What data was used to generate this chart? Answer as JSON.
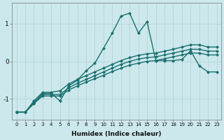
{
  "xlabel": "Humidex (Indice chaleur)",
  "ylabel": "",
  "xlim": [
    -0.5,
    23.5
  ],
  "ylim": [
    -1.55,
    1.55
  ],
  "xticks": [
    0,
    1,
    2,
    3,
    4,
    5,
    6,
    7,
    8,
    9,
    10,
    11,
    12,
    13,
    14,
    15,
    16,
    17,
    18,
    19,
    20,
    21,
    22,
    23
  ],
  "yticks": [
    -1,
    0,
    1
  ],
  "bg_color": "#cce8ec",
  "grid_color": "#b8d8dc",
  "line_color": "#1a7070",
  "line_width": 1.0,
  "marker": "D",
  "marker_size": 2.2,
  "series": [
    {
      "x": [
        0,
        1,
        2,
        3,
        4,
        5,
        6,
        7,
        8,
        9,
        10,
        11,
        12,
        13,
        14,
        15,
        16,
        17,
        18,
        19,
        20,
        21,
        22,
        23
      ],
      "y": [
        -1.35,
        -1.35,
        -1.1,
        -0.85,
        -0.85,
        -1.05,
        -0.65,
        -0.5,
        -0.25,
        -0.05,
        0.35,
        0.75,
        1.2,
        1.28,
        0.75,
        1.05,
        0.02,
        0.02,
        0.02,
        0.05,
        0.28,
        -0.12,
        -0.28,
        -0.28
      ]
    },
    {
      "x": [
        0,
        1,
        2,
        3,
        4,
        5,
        6,
        7,
        8,
        9,
        10,
        11,
        12,
        13,
        14,
        15,
        16,
        17,
        18,
        19,
        20,
        21,
        22,
        23
      ],
      "y": [
        -1.35,
        -1.35,
        -1.05,
        -0.82,
        -0.82,
        -0.78,
        -0.6,
        -0.48,
        -0.38,
        -0.28,
        -0.18,
        -0.08,
        0.02,
        0.1,
        0.16,
        0.2,
        0.22,
        0.27,
        0.32,
        0.38,
        0.44,
        0.44,
        0.38,
        0.38
      ]
    },
    {
      "x": [
        0,
        1,
        2,
        3,
        4,
        5,
        6,
        7,
        8,
        9,
        10,
        11,
        12,
        13,
        14,
        15,
        16,
        17,
        18,
        19,
        20,
        21,
        22,
        23
      ],
      "y": [
        -1.35,
        -1.35,
        -1.1,
        -0.88,
        -0.88,
        -0.88,
        -0.7,
        -0.58,
        -0.48,
        -0.38,
        -0.28,
        -0.18,
        -0.08,
        0.0,
        0.06,
        0.1,
        0.12,
        0.17,
        0.22,
        0.27,
        0.32,
        0.32,
        0.27,
        0.27
      ]
    },
    {
      "x": [
        0,
        1,
        2,
        3,
        4,
        5,
        6,
        7,
        8,
        9,
        10,
        11,
        12,
        13,
        14,
        15,
        16,
        17,
        18,
        19,
        20,
        21,
        22,
        23
      ],
      "y": [
        -1.35,
        -1.35,
        -1.12,
        -0.92,
        -0.92,
        -0.92,
        -0.76,
        -0.65,
        -0.55,
        -0.46,
        -0.37,
        -0.27,
        -0.18,
        -0.1,
        -0.05,
        0.0,
        0.02,
        0.07,
        0.12,
        0.17,
        0.22,
        0.22,
        0.17,
        0.17
      ]
    }
  ]
}
